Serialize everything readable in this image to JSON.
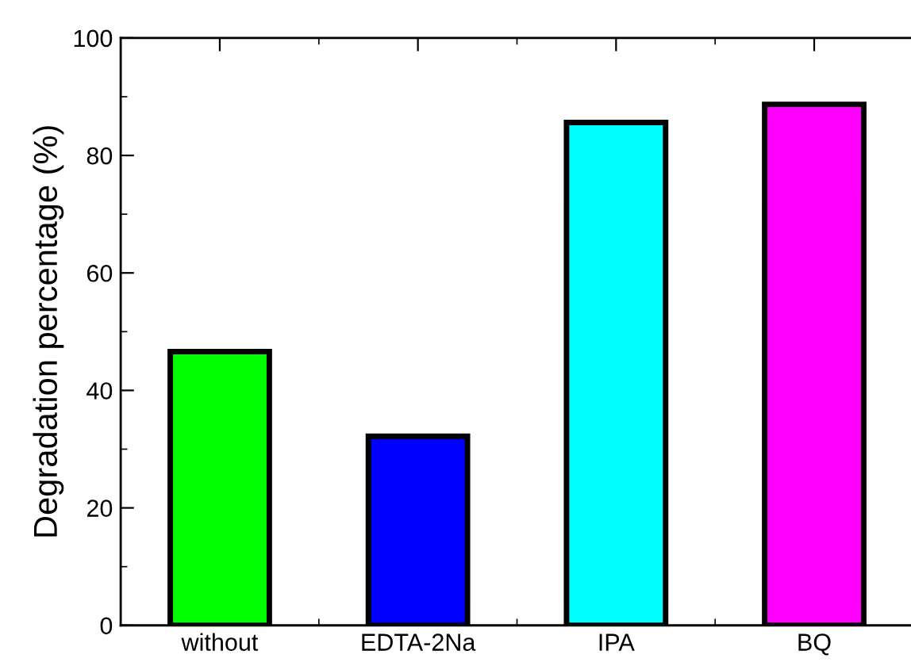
{
  "chart_data": {
    "type": "bar",
    "ylabel": "Degradation percentage (%)",
    "categories": [
      "without",
      "EDTA-2Na",
      "IPA",
      "BQ"
    ],
    "values": [
      46.6,
      32.2,
      85.6,
      88.7
    ],
    "colors": [
      "#00ff00",
      "#0000ff",
      "#00ffff",
      "#ff00ff"
    ],
    "ylim": [
      0,
      100
    ],
    "yticks": [
      0,
      20,
      40,
      60,
      80,
      100
    ],
    "grid": false
  }
}
